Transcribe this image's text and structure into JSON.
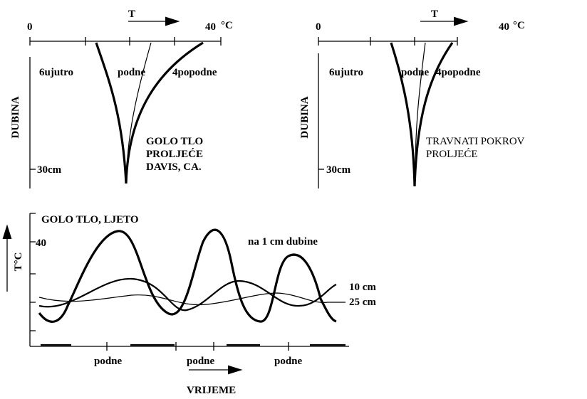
{
  "panels": [
    {
      "axis_zero": "0",
      "axis_var": "T",
      "axis_max": "40",
      "axis_unit": "°C",
      "depth_label": "DUBINA",
      "times": [
        "6ujutro",
        "podne",
        "4popodne"
      ],
      "depth_tick": "30cm",
      "caption": [
        "GOLO TLO",
        "PROLJEĆE",
        "DAVIS, CA."
      ]
    },
    {
      "axis_zero": "0",
      "axis_var": "T",
      "axis_max": "40",
      "axis_unit": "°C",
      "depth_label": "DUBINA",
      "times": [
        "6ujutro",
        "podne",
        "4popodne"
      ],
      "depth_tick": "30cm",
      "caption": [
        "TRAVNATI POKROV",
        "PROLJEĆE"
      ]
    }
  ],
  "bottom": {
    "title": "GOLO TLO, LJETO",
    "y_label": "T°C",
    "y_tick": "40",
    "curves": [
      "na 1 cm dubine",
      "10 cm",
      "25 cm"
    ],
    "noons": [
      "podne",
      "podne",
      "podne"
    ],
    "x_label": "VRIJEME"
  }
}
